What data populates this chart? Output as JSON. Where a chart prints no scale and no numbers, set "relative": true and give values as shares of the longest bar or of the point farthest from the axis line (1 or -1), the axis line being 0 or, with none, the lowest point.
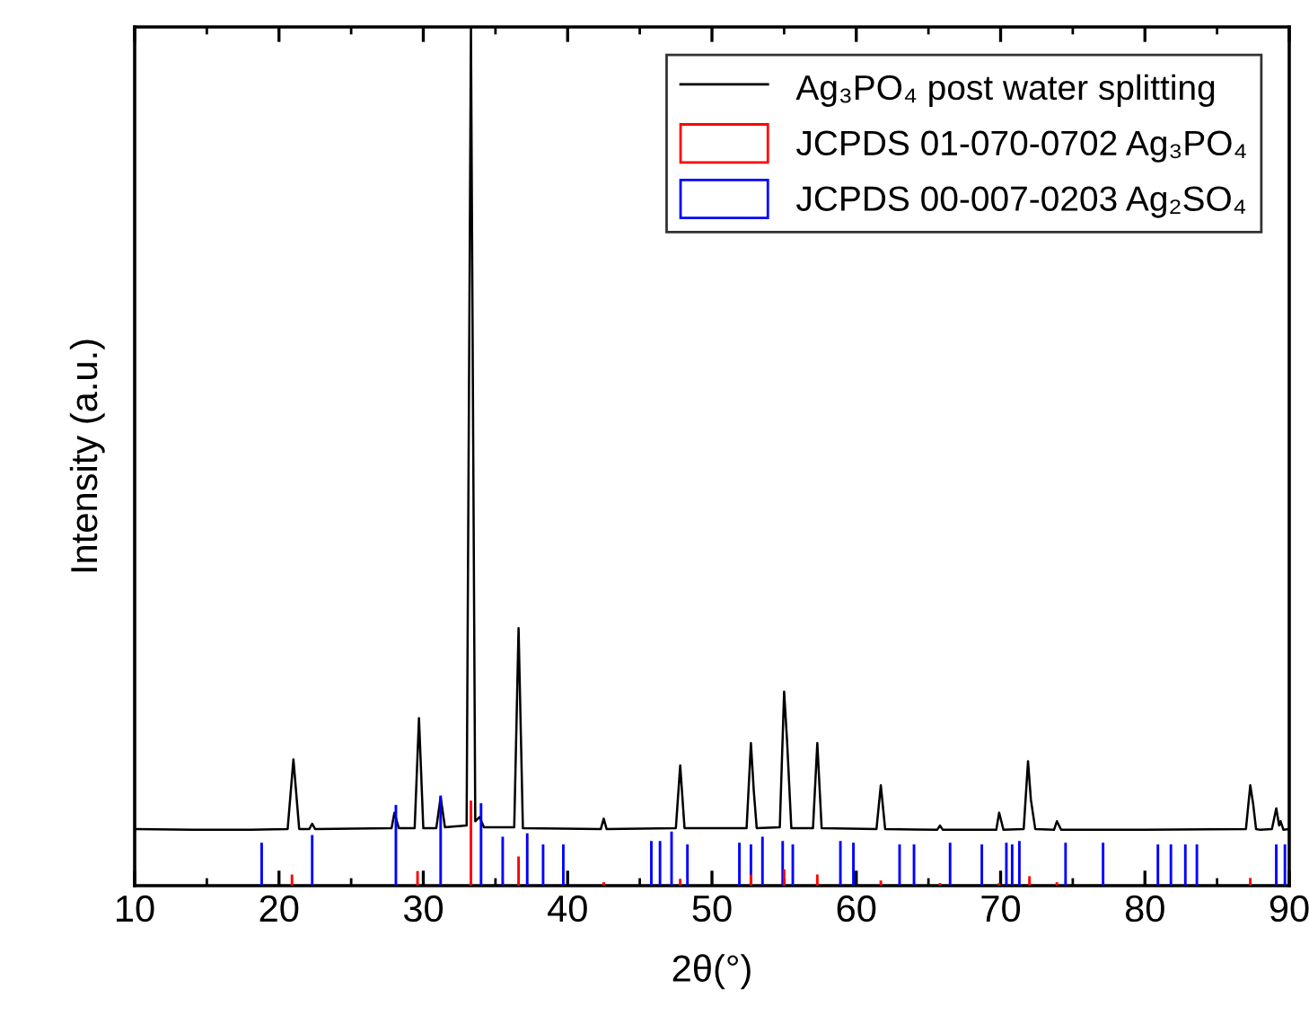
{
  "chart_data": {
    "type": "line",
    "relative": true,
    "xlabel": "2θ(°)",
    "ylabel": "Intensity (a.u.)",
    "xlim": [
      10,
      90
    ],
    "xticks": [
      10,
      20,
      30,
      40,
      50,
      60,
      70,
      80,
      90
    ],
    "legend": "top right",
    "grid": false,
    "series": [
      {
        "name": "Ag₃PO₄ post water splitting",
        "color": "#000000",
        "x": [
          10,
          14,
          18,
          20.6,
          21.0,
          21.4,
          22.1,
          22.3,
          22.5,
          27.8,
          28.0,
          28.3,
          29.4,
          29.7,
          30.0,
          30.9,
          31.2,
          31.5,
          33.0,
          33.3,
          33.6,
          33.9,
          34.2,
          36.3,
          36.6,
          36.9,
          42.3,
          42.5,
          42.7,
          47.5,
          47.8,
          48.1,
          52.4,
          52.7,
          52.9,
          53.1,
          54.7,
          55.0,
          55.2,
          55.5,
          57.0,
          57.3,
          57.6,
          61.4,
          61.7,
          62.0,
          65.6,
          65.8,
          66.0,
          69.7,
          69.9,
          70.2,
          71.6,
          71.9,
          72.1,
          72.4,
          73.7,
          73.9,
          74.2,
          80,
          87.0,
          87.3,
          87.5,
          87.7,
          88.0,
          88.8,
          89.1,
          89.3,
          89.4,
          89.6,
          90
        ],
        "values": [
          0.066,
          0.065,
          0.065,
          0.066,
          0.147,
          0.066,
          0.066,
          0.072,
          0.066,
          0.067,
          0.085,
          0.067,
          0.067,
          0.195,
          0.067,
          0.067,
          0.103,
          0.068,
          0.07,
          1.0,
          0.075,
          0.08,
          0.068,
          0.068,
          0.3,
          0.067,
          0.066,
          0.078,
          0.066,
          0.067,
          0.14,
          0.067,
          0.067,
          0.166,
          0.11,
          0.067,
          0.068,
          0.226,
          0.17,
          0.067,
          0.067,
          0.166,
          0.067,
          0.066,
          0.117,
          0.066,
          0.065,
          0.07,
          0.065,
          0.065,
          0.085,
          0.065,
          0.066,
          0.145,
          0.1,
          0.066,
          0.065,
          0.075,
          0.065,
          0.065,
          0.066,
          0.117,
          0.095,
          0.066,
          0.065,
          0.066,
          0.09,
          0.07,
          0.075,
          0.065,
          0.066
        ]
      },
      {
        "name": "JCPDS 01-070-0702 Ag₃PO₄",
        "type": "bar",
        "color": "#ff0000",
        "x": [
          20.9,
          29.6,
          33.3,
          36.6,
          42.5,
          47.8,
          52.7,
          55.0,
          57.3,
          61.7,
          65.8,
          69.9,
          72.0,
          73.9,
          87.3
        ],
        "values": [
          0.013,
          0.017,
          0.099,
          0.034,
          0.004,
          0.008,
          0.013,
          0.019,
          0.013,
          0.006,
          0.003,
          0.003,
          0.011,
          0.004,
          0.009
        ]
      },
      {
        "name": "JCPDS 00-007-0203 Ag₂SO₄",
        "type": "bar",
        "color": "#0000ff",
        "x": [
          18.8,
          22.3,
          28.1,
          31.2,
          34.0,
          35.5,
          37.2,
          38.3,
          39.7,
          45.8,
          46.4,
          47.2,
          48.3,
          51.9,
          52.7,
          53.5,
          54.9,
          55.6,
          58.9,
          59.8,
          63.0,
          64.0,
          66.5,
          68.7,
          70.4,
          70.8,
          71.3,
          74.5,
          77.1,
          80.9,
          81.8,
          82.8,
          83.6,
          89.1,
          89.7
        ],
        "values": [
          0.05,
          0.059,
          0.094,
          0.105,
          0.096,
          0.057,
          0.061,
          0.048,
          0.048,
          0.052,
          0.052,
          0.063,
          0.048,
          0.05,
          0.048,
          0.057,
          0.052,
          0.048,
          0.052,
          0.05,
          0.048,
          0.048,
          0.05,
          0.048,
          0.05,
          0.048,
          0.052,
          0.05,
          0.05,
          0.048,
          0.048,
          0.048,
          0.048,
          0.048,
          0.048
        ]
      }
    ]
  }
}
